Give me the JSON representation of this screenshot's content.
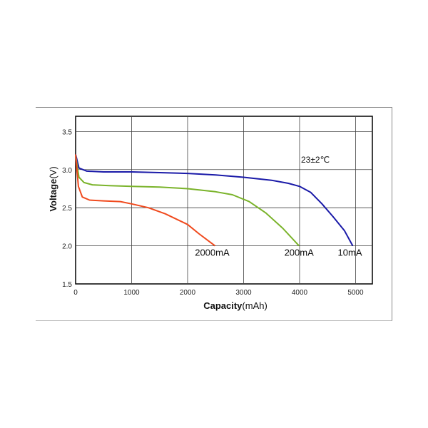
{
  "chart_data": {
    "type": "line",
    "title": "",
    "xlabel_bold": "Capacity",
    "xlabel_unit": "(mAh)",
    "ylabel_bold": "Voltage",
    "ylabel_unit": "(V)",
    "xlim": [
      0,
      5300
    ],
    "ylim": [
      1.5,
      3.7
    ],
    "x_ticks": [
      "0",
      "1000",
      "2000",
      "3000",
      "4000",
      "5000"
    ],
    "x_tick_values": [
      0,
      1000,
      2000,
      3000,
      4000,
      5000
    ],
    "y_ticks": [
      "1.5",
      "2.0",
      "2.5",
      "3.0",
      "3.5"
    ],
    "y_tick_values": [
      1.5,
      2.0,
      2.5,
      3.0,
      3.5
    ],
    "grid": true,
    "annotation": "23±2℃",
    "series": [
      {
        "name": "10mA",
        "color": "#1a1aa8",
        "x": [
          0,
          60,
          200,
          500,
          1000,
          1500,
          2000,
          2500,
          3000,
          3500,
          3800,
          4000,
          4200,
          4400,
          4600,
          4800,
          4950
        ],
        "y": [
          3.2,
          3.02,
          2.98,
          2.97,
          2.97,
          2.96,
          2.95,
          2.93,
          2.9,
          2.86,
          2.82,
          2.78,
          2.7,
          2.55,
          2.38,
          2.2,
          2.0
        ]
      },
      {
        "name": "200mA",
        "color": "#7ab32a",
        "x": [
          0,
          60,
          150,
          300,
          600,
          1000,
          1500,
          2000,
          2500,
          2800,
          3100,
          3400,
          3700,
          3990
        ],
        "y": [
          3.18,
          2.9,
          2.83,
          2.8,
          2.79,
          2.78,
          2.77,
          2.75,
          2.71,
          2.67,
          2.58,
          2.43,
          2.23,
          2.0
        ]
      },
      {
        "name": "2000mA",
        "color": "#f04a1e",
        "x": [
          0,
          50,
          120,
          250,
          500,
          800,
          1000,
          1300,
          1600,
          2000,
          2200,
          2400,
          2490
        ],
        "y": [
          3.2,
          2.78,
          2.64,
          2.6,
          2.59,
          2.58,
          2.55,
          2.5,
          2.42,
          2.28,
          2.16,
          2.05,
          2.0
        ]
      }
    ]
  }
}
